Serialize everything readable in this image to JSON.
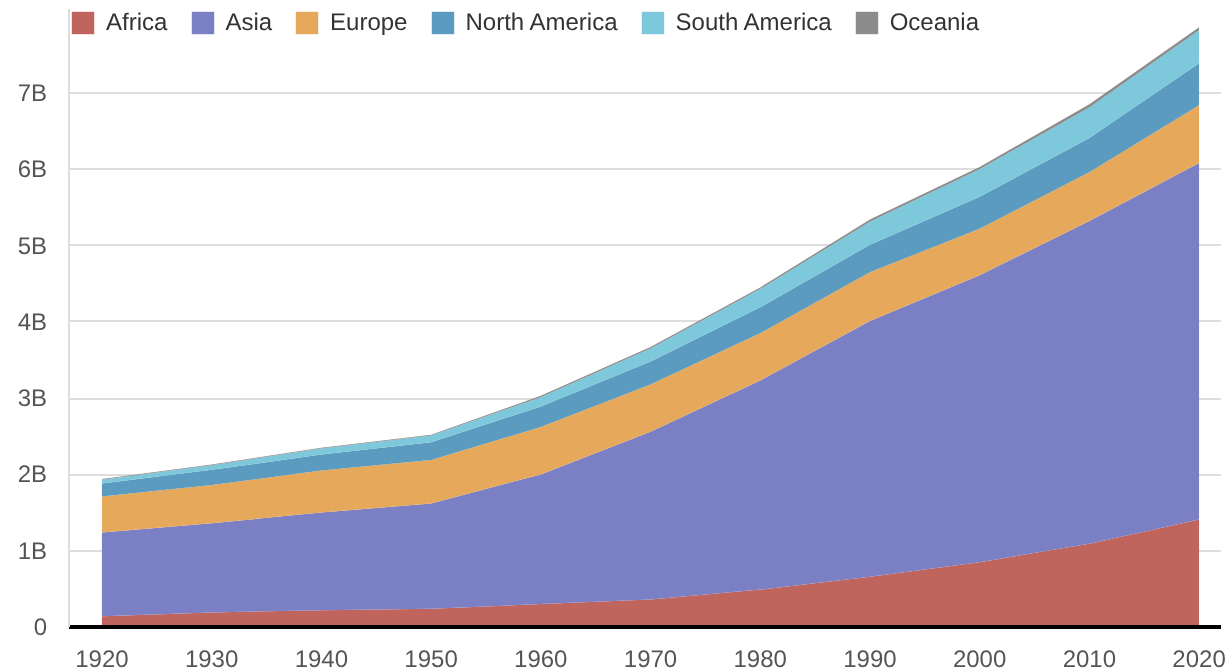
{
  "chart_data": {
    "type": "area",
    "stacked": true,
    "x": [
      1920,
      1930,
      1940,
      1950,
      1960,
      1970,
      1980,
      1990,
      2000,
      2010,
      2020
    ],
    "series": [
      {
        "name": "Africa",
        "color": "#c0645e",
        "values": [
          0.14,
          0.19,
          0.22,
          0.24,
          0.3,
          0.36,
          0.49,
          0.66,
          0.85,
          1.09,
          1.41
        ]
      },
      {
        "name": "Asia",
        "color": "#7b7fc4",
        "values": [
          1.1,
          1.17,
          1.28,
          1.38,
          1.7,
          2.2,
          2.74,
          3.35,
          3.76,
          4.23,
          4.67
        ]
      },
      {
        "name": "Europe",
        "color": "#e6a95c",
        "values": [
          0.47,
          0.5,
          0.55,
          0.57,
          0.62,
          0.62,
          0.62,
          0.64,
          0.61,
          0.64,
          0.76
        ]
      },
      {
        "name": "North America",
        "color": "#5b9bbf",
        "values": [
          0.17,
          0.2,
          0.21,
          0.23,
          0.27,
          0.3,
          0.34,
          0.36,
          0.42,
          0.45,
          0.55
        ]
      },
      {
        "name": "South America",
        "color": "#7ec8dc",
        "values": [
          0.05,
          0.06,
          0.08,
          0.09,
          0.12,
          0.17,
          0.24,
          0.3,
          0.36,
          0.4,
          0.43
        ]
      },
      {
        "name": "Oceania",
        "color": "#8c8c8c",
        "values": [
          0.01,
          0.01,
          0.01,
          0.01,
          0.02,
          0.02,
          0.02,
          0.03,
          0.03,
          0.04,
          0.04
        ]
      }
    ],
    "xlim": [
      1917,
      2022
    ],
    "xticks": [
      1920,
      1930,
      1940,
      1950,
      1960,
      1970,
      1980,
      1990,
      2000,
      2010,
      2020
    ],
    "ylim": [
      0,
      8.1
    ],
    "yticks": [
      {
        "value": 0,
        "label": "0"
      },
      {
        "value": 1,
        "label": "1B"
      },
      {
        "value": 2,
        "label": "2B"
      },
      {
        "value": 3,
        "label": "3B"
      },
      {
        "value": 4,
        "label": "4B"
      },
      {
        "value": 5,
        "label": "5B"
      },
      {
        "value": 6,
        "label": "6B"
      },
      {
        "value": 7,
        "label": "7B"
      }
    ],
    "grid": "y",
    "legend": "top left"
  }
}
